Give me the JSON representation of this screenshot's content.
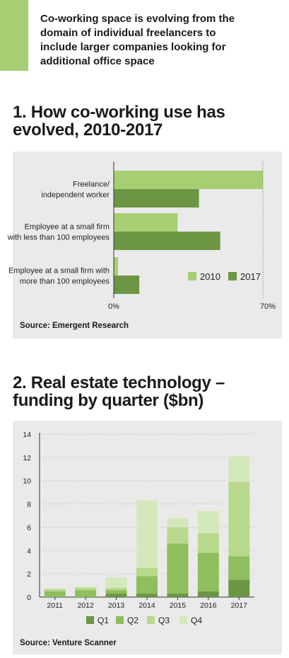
{
  "intro": {
    "lines": [
      "Co-working space is evolving from the",
      "domain of individual freelancers to",
      "include larger companies looking for",
      "additional office space"
    ]
  },
  "section1": {
    "title_lines": [
      "1. How co-working use has",
      "evolved, 2010-2017"
    ],
    "source": "Source: Emergent Research"
  },
  "section2": {
    "title_lines": [
      "2. Real estate technology –",
      "funding by quarter ($bn)"
    ],
    "source": "Source: Venture Scanner"
  },
  "colors": {
    "light_green": "#a6cf73",
    "dark_green": "#6c9644",
    "q1": "#6c9644",
    "q2": "#8fbe5c",
    "q3": "#b8d98c",
    "q4": "#d5e8bb",
    "panel_bg": "#eaeaea"
  },
  "chart_data": [
    {
      "type": "bar",
      "orientation": "horizontal",
      "categories": [
        [
          "Freelance/",
          "independent worker"
        ],
        [
          "Employee at a small firm",
          "with less than 100 employees"
        ],
        [
          "Employee at a small firm with",
          "more than 100 employees"
        ]
      ],
      "series": [
        {
          "name": "2010",
          "values": [
            70,
            30,
            2
          ]
        },
        {
          "name": "2017",
          "values": [
            40,
            50,
            12
          ]
        }
      ],
      "xlim": [
        0,
        70
      ],
      "x_ticks": [
        "0%",
        "70%"
      ],
      "legend": "bottom-right"
    },
    {
      "type": "bar",
      "stacked": true,
      "categories": [
        "2011",
        "2012",
        "2013",
        "2014",
        "2015",
        "2016",
        "2017"
      ],
      "series": [
        {
          "name": "Q1",
          "values": [
            0.0,
            0.0,
            0.3,
            0.3,
            0.3,
            0.5,
            1.5
          ]
        },
        {
          "name": "Q2",
          "values": [
            0.5,
            0.6,
            0.3,
            1.5,
            4.3,
            3.3,
            2.0
          ]
        },
        {
          "name": "Q3",
          "values": [
            0.2,
            0.2,
            0.2,
            0.7,
            1.4,
            1.7,
            6.4
          ]
        },
        {
          "name": "Q4",
          "values": [
            0.0,
            0.1,
            0.9,
            5.8,
            0.8,
            1.9,
            2.2
          ]
        }
      ],
      "ylim": [
        0,
        14
      ],
      "y_ticks": [
        "0",
        "2",
        "4",
        "6",
        "8",
        "10",
        "12",
        "14"
      ],
      "grid": true,
      "legend": "bottom"
    }
  ]
}
